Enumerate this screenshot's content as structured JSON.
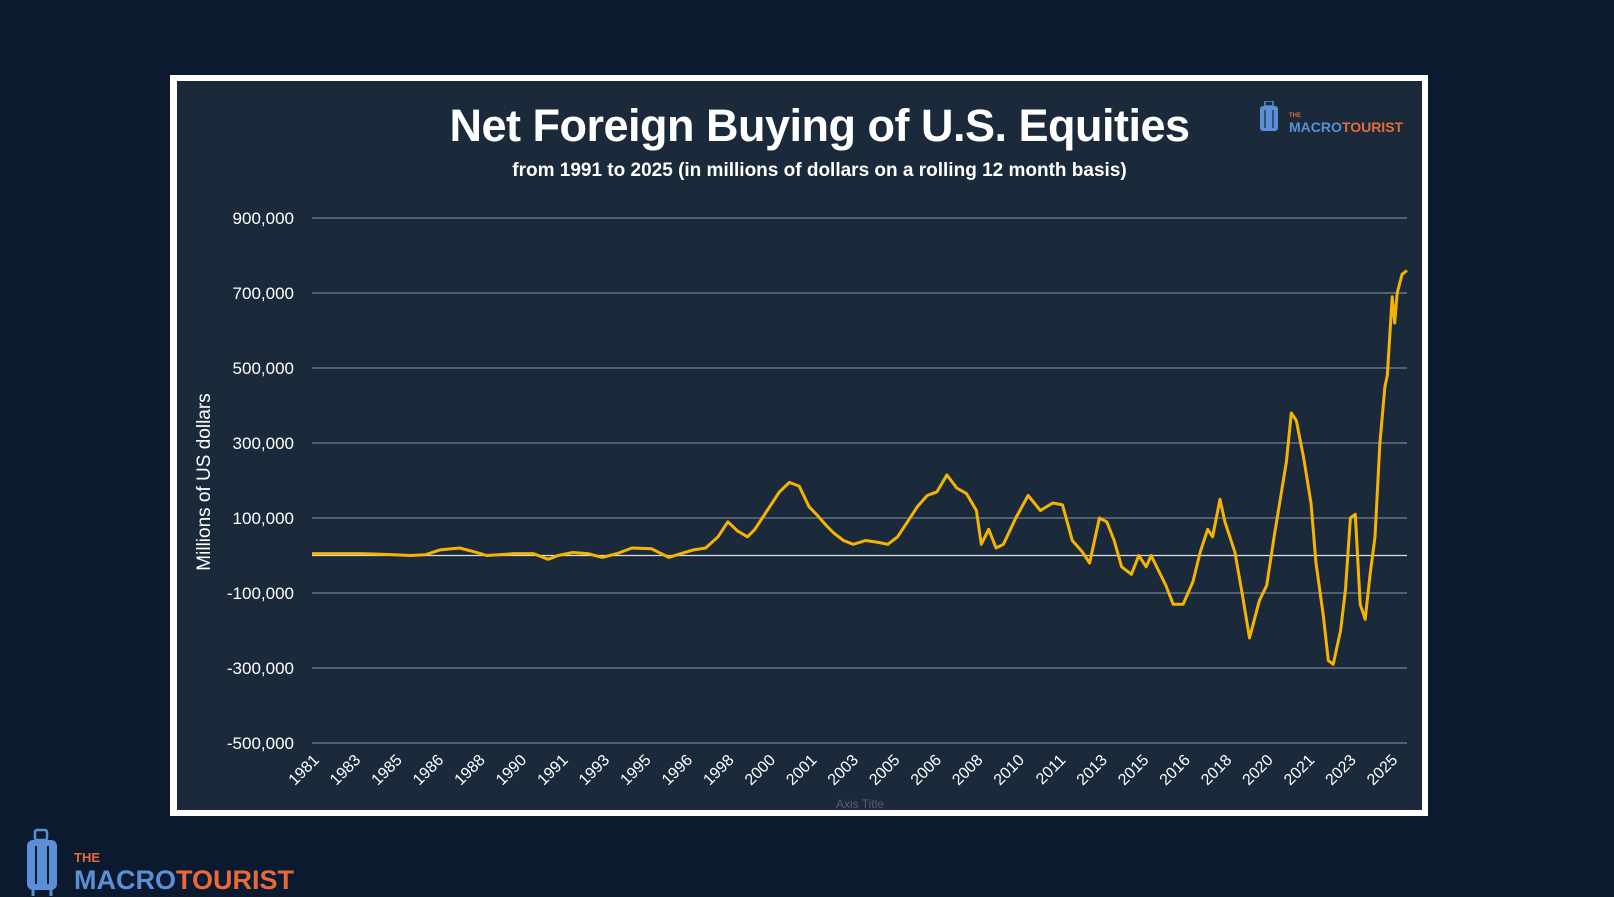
{
  "branding": {
    "the": "THE",
    "macro": "MACRO",
    "tourist": "TOURIST"
  },
  "colors": {
    "background": "#0b1a2e",
    "panel": "#1a2a3b",
    "line": "#f5b400",
    "grid": "#8a96a3",
    "brand_blue": "#5b8fd6",
    "brand_orange": "#e86a3a"
  },
  "chart_data": {
    "type": "line",
    "title": "Net Foreign Buying of U.S. Equities",
    "subtitle": "from 1991 to 2025 (in millions of dollars on a rolling 12 month basis)",
    "ylabel": "Millions of US dollars",
    "xlabel": "Axis Title",
    "ylim": [
      -500000,
      900000
    ],
    "y_ticks": [
      "900,000",
      "700,000",
      "500,000",
      "300,000",
      "100,000",
      "-100,000",
      "-300,000",
      "-500,000"
    ],
    "y_tick_values": [
      900000,
      700000,
      500000,
      300000,
      100000,
      -100000,
      -300000,
      -500000
    ],
    "x_tick_labels": [
      "1981",
      "1983",
      "1985",
      "1986",
      "1988",
      "1990",
      "1991",
      "1993",
      "1995",
      "1996",
      "1998",
      "2000",
      "2001",
      "2003",
      "2005",
      "2006",
      "2008",
      "2010",
      "2011",
      "2013",
      "2015",
      "2016",
      "2018",
      "2020",
      "2021",
      "2023",
      "2025"
    ],
    "x_range": [
      1981.0,
      2025.5
    ],
    "grid": true,
    "series": [
      {
        "color": "#f5b400",
        "x": [
          1981.0,
          1982.0,
          1983.0,
          1984.0,
          1985.0,
          1985.6,
          1986.2,
          1987.0,
          1987.6,
          1988.1,
          1988.6,
          1989.2,
          1990.0,
          1990.6,
          1991.0,
          1991.6,
          1992.2,
          1992.8,
          1993.4,
          1994.0,
          1994.8,
          1995.5,
          1996.0,
          1996.5,
          1997.0,
          1997.5,
          1997.9,
          1998.3,
          1998.7,
          1999.0,
          1999.5,
          2000.0,
          2000.4,
          2000.8,
          2001.2,
          2001.5,
          2001.9,
          2002.2,
          2002.6,
          2003.0,
          2003.5,
          2004.0,
          2004.4,
          2004.8,
          2005.2,
          2005.6,
          2006.0,
          2006.4,
          2006.8,
          2007.2,
          2007.6,
          2008.0,
          2008.2,
          2008.5,
          2008.8,
          2009.1,
          2009.6,
          2010.1,
          2010.6,
          2011.1,
          2011.5,
          2011.9,
          2012.3,
          2012.6,
          2013.0,
          2013.3,
          2013.6,
          2013.9,
          2014.3,
          2014.6,
          2014.9,
          2015.1,
          2015.4,
          2015.7,
          2016.0,
          2016.4,
          2016.8,
          2017.1,
          2017.4,
          2017.6,
          2017.9,
          2018.1,
          2018.5,
          2018.8,
          2019.1,
          2019.5,
          2019.8,
          2020.1,
          2020.4,
          2020.6,
          2020.8,
          2021.0,
          2021.3,
          2021.6,
          2021.8,
          2022.1,
          2022.3,
          2022.5,
          2022.8,
          2023.0,
          2023.2,
          2023.4,
          2023.6,
          2023.8,
          2024.0,
          2024.2,
          2024.4,
          2024.6,
          2024.7,
          2024.9,
          2025.0,
          2025.1,
          2025.3,
          2025.5
        ],
        "values": [
          5000,
          5000,
          5000,
          3000,
          0,
          2000,
          15000,
          20000,
          10000,
          0,
          2000,
          5000,
          5000,
          -10000,
          0,
          8000,
          5000,
          -5000,
          5000,
          20000,
          18000,
          -5000,
          5000,
          15000,
          20000,
          50000,
          90000,
          65000,
          50000,
          70000,
          120000,
          170000,
          195000,
          185000,
          130000,
          110000,
          80000,
          60000,
          40000,
          30000,
          40000,
          35000,
          30000,
          50000,
          90000,
          130000,
          160000,
          170000,
          215000,
          180000,
          165000,
          120000,
          30000,
          70000,
          20000,
          30000,
          100000,
          160000,
          120000,
          140000,
          135000,
          40000,
          10000,
          -20000,
          100000,
          90000,
          40000,
          -30000,
          -50000,
          0,
          -30000,
          0,
          -40000,
          -80000,
          -130000,
          -130000,
          -70000,
          10000,
          70000,
          50000,
          150000,
          90000,
          10000,
          -100000,
          -220000,
          -120000,
          -80000,
          50000,
          170000,
          250000,
          380000,
          360000,
          260000,
          140000,
          -20000,
          -160000,
          -280000,
          -290000,
          -200000,
          -90000,
          100000,
          110000,
          -130000,
          -170000,
          -50000,
          50000,
          300000,
          450000,
          480000,
          690000,
          620000,
          700000,
          750000,
          760000
        ]
      }
    ]
  }
}
